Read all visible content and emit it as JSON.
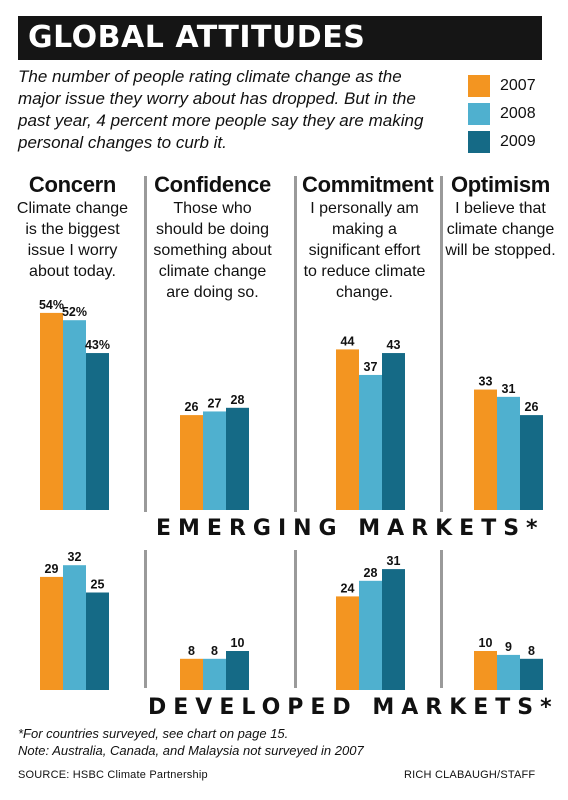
{
  "header": {
    "title": "GLOBAL ATTITUDES",
    "subtitle": "The number of people rating climate change as the major issue they worry about has dropped. But in the past year, 4 percent more people say they are making personal changes to curb it."
  },
  "legend": [
    {
      "label": "2007",
      "color": "#f39521"
    },
    {
      "label": "2008",
      "color": "#4fb0cf"
    },
    {
      "label": "2009",
      "color": "#156a86"
    }
  ],
  "panels": [
    {
      "title": "Concern",
      "description": "Climate change is the biggest issue I worry about today."
    },
    {
      "title": "Confidence",
      "description": "Those who should be doing something about climate change are doing so."
    },
    {
      "title": "Commitment",
      "description": "I personally am making a significant effort to reduce climate change."
    },
    {
      "title": "Optimism",
      "description": "I believe that climate change will be stopped."
    }
  ],
  "markets": {
    "emerging_label": "EMERGING MARKETS*",
    "developed_label": "DEVELOPED MARKETS*"
  },
  "chart_data": [
    {
      "type": "bar",
      "group": "EMERGING MARKETS*",
      "categories": [
        "Concern",
        "Confidence",
        "Commitment",
        "Optimism"
      ],
      "series": [
        {
          "name": "2007",
          "values": [
            54,
            26,
            44,
            33
          ],
          "labels": [
            "54%",
            "26",
            "44",
            "33"
          ]
        },
        {
          "name": "2008",
          "values": [
            52,
            27,
            37,
            31
          ],
          "labels": [
            "52%",
            "27",
            "37",
            "31"
          ]
        },
        {
          "name": "2009",
          "values": [
            43,
            28,
            43,
            26
          ],
          "labels": [
            "43%",
            "28",
            "43",
            "26"
          ]
        }
      ]
    },
    {
      "type": "bar",
      "group": "DEVELOPED MARKETS*",
      "categories": [
        "Concern",
        "Confidence",
        "Commitment",
        "Optimism"
      ],
      "series": [
        {
          "name": "2007",
          "values": [
            29,
            8,
            24,
            10
          ],
          "labels": [
            "29",
            "8",
            "24",
            "10"
          ]
        },
        {
          "name": "2008",
          "values": [
            32,
            8,
            28,
            9
          ],
          "labels": [
            "32",
            "8",
            "28",
            "9"
          ]
        },
        {
          "name": "2009",
          "values": [
            25,
            10,
            31,
            8
          ],
          "labels": [
            "25",
            "10",
            "31",
            "8"
          ]
        }
      ]
    }
  ],
  "footer": {
    "note1": "*For countries surveyed, see chart on page 15.",
    "note2": "Note: Australia, Canada, and Malaysia not surveyed in 2007",
    "source": "SOURCE: HSBC Climate Partnership",
    "credit": "RICH CLABAUGH/STAFF"
  }
}
